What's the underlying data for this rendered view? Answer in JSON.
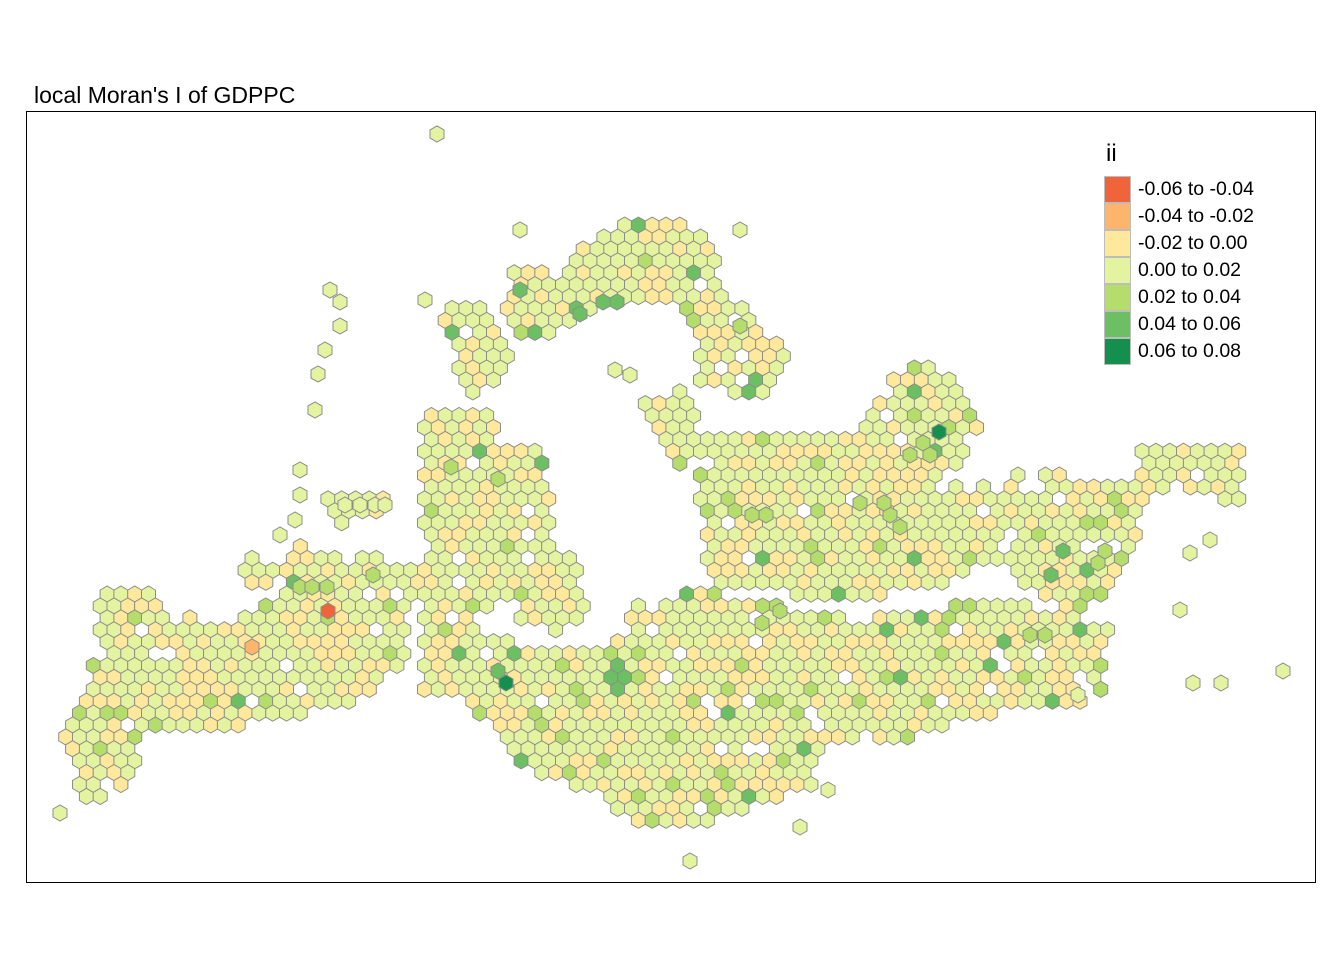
{
  "title": "local Moran's I of GDPPC",
  "legend": {
    "title": "ii",
    "items": [
      {
        "label": "-0.06 to -0.04",
        "color": "#f0643c"
      },
      {
        "label": "-0.04 to -0.02",
        "color": "#fdb56b"
      },
      {
        "label": "-0.02 to 0.00",
        "color": "#fee89b"
      },
      {
        "label": "0.00 to 0.02",
        "color": "#e4f3a0"
      },
      {
        "label": "0.02 to 0.04",
        "color": "#b4dd6c"
      },
      {
        "label": "0.04 to 0.06",
        "color": "#6cbf62"
      },
      {
        "label": "0.06 to 0.08",
        "color": "#158f4d"
      }
    ]
  },
  "map": {
    "hex_outline_color": "#8c8c8c"
  }
}
